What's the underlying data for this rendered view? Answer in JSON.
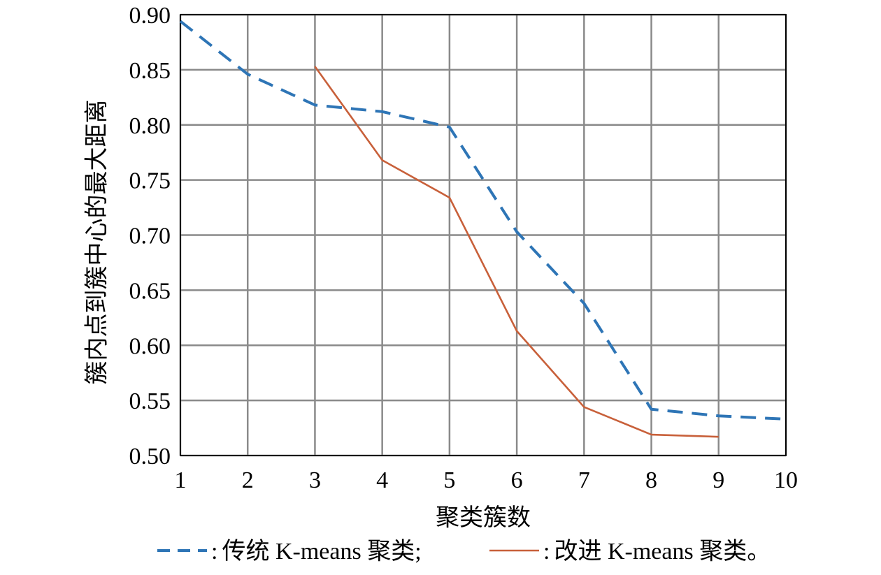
{
  "chart_data": {
    "type": "line",
    "xlabel": "聚类簇数",
    "ylabel": "簇内点到簇中心的最大距离",
    "xlim": [
      1,
      10
    ],
    "ylim": [
      0.5,
      0.9
    ],
    "x_ticks": [
      "1",
      "2",
      "3",
      "4",
      "5",
      "6",
      "7",
      "8",
      "9",
      "10"
    ],
    "y_ticks": [
      "0.50",
      "0.55",
      "0.60",
      "0.65",
      "0.70",
      "0.75",
      "0.80",
      "0.85",
      "0.90"
    ],
    "grid": true,
    "legend_position": "bottom",
    "series": [
      {
        "name": "传统 K-means 聚类;",
        "legend_prefix": ":",
        "style": "dashed",
        "color": "#2e75b6",
        "x": [
          1,
          2,
          3,
          4,
          5,
          6,
          7,
          8,
          9,
          10
        ],
        "y": [
          0.894,
          0.846,
          0.818,
          0.812,
          0.798,
          0.703,
          0.638,
          0.542,
          0.536,
          0.533
        ]
      },
      {
        "name": "改进 K-means 聚类。",
        "legend_prefix": ":",
        "style": "solid",
        "color": "#c8603a",
        "x": [
          3,
          4,
          5,
          6,
          7,
          8,
          9
        ],
        "y": [
          0.853,
          0.768,
          0.734,
          0.613,
          0.544,
          0.519,
          0.517
        ]
      }
    ]
  }
}
